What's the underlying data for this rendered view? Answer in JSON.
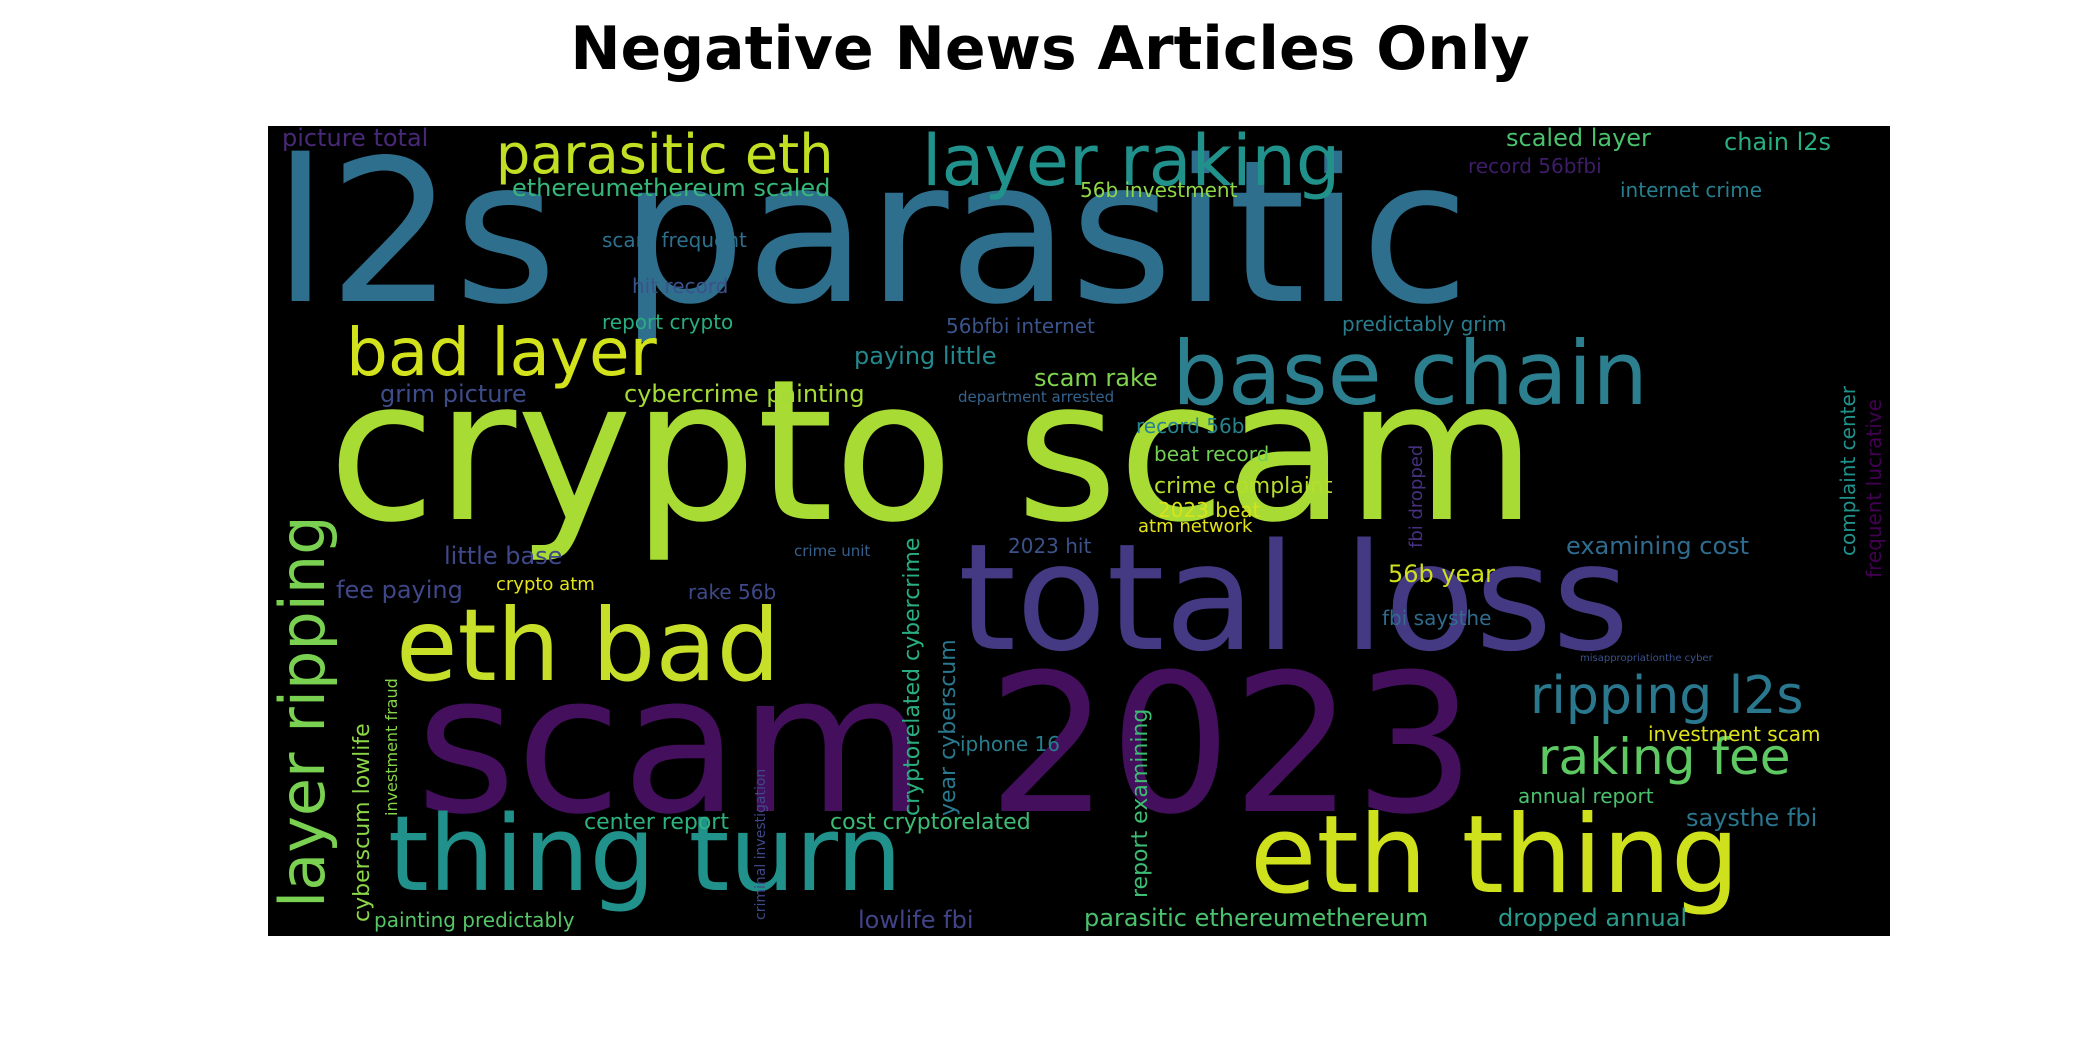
{
  "title": "Negative News Articles Only",
  "wordcloud": {
    "background": "#000000",
    "words": [
      {
        "id": "l2s-parasitic",
        "text": "l2s parasitic",
        "color": "#2f6f8e"
      },
      {
        "id": "crypto-scam",
        "text": "crypto scam",
        "color": "#a8db34"
      },
      {
        "id": "total-loss",
        "text": "total loss",
        "color": "#443983"
      },
      {
        "id": "scam-2023",
        "text": "scam 2023",
        "color": "#440f5c"
      },
      {
        "id": "eth-bad",
        "text": "eth bad",
        "color": "#c8df2a"
      },
      {
        "id": "eth-thing",
        "text": "eth thing",
        "color": "#cfe11c"
      },
      {
        "id": "thing-turn",
        "text": "thing turn",
        "color": "#21918c"
      },
      {
        "id": "base-chain",
        "text": "base chain",
        "color": "#2c7f8e"
      },
      {
        "id": "layer-raking",
        "text": "layer raking",
        "color": "#21918c"
      },
      {
        "id": "parasitic-eth",
        "text": "parasitic eth",
        "color": "#c2df23"
      },
      {
        "id": "bad-layer",
        "text": "bad layer",
        "color": "#d2e21b"
      },
      {
        "id": "layer-ripping",
        "text": "layer ripping",
        "color": "#7ad151"
      },
      {
        "id": "ripping-l2s",
        "text": "ripping l2s",
        "color": "#2a788e"
      },
      {
        "id": "raking-fee",
        "text": "raking fee",
        "color": "#5ec962"
      },
      {
        "id": "scaled-layer",
        "text": "scaled layer",
        "color": "#4ac16d"
      },
      {
        "id": "chain-l2s",
        "text": "chain l2s",
        "color": "#29af7f"
      },
      {
        "id": "picture-total",
        "text": "picture total",
        "color": "#482878"
      },
      {
        "id": "record-56bfbi",
        "text": "record 56bfbi",
        "color": "#3e1d68"
      },
      {
        "id": "ethereumethereum-scaled",
        "text": "ethereumethereum scaled",
        "color": "#35b779"
      },
      {
        "id": "56b-investment",
        "text": "56b investment",
        "color": "#8fd744"
      },
      {
        "id": "internet-crime",
        "text": "internet crime",
        "color": "#277f8e"
      },
      {
        "id": "scam-frequent",
        "text": "scam frequent",
        "color": "#2d708e"
      },
      {
        "id": "hit-record",
        "text": "hit record",
        "color": "#3b528b"
      },
      {
        "id": "report-crypto",
        "text": "report crypto",
        "color": "#28ae80"
      },
      {
        "id": "56bfbi-internet",
        "text": "56bfbi internet",
        "color": "#3a548c"
      },
      {
        "id": "predictably-grim",
        "text": "predictably grim",
        "color": "#2b7c8e"
      },
      {
        "id": "paying-little",
        "text": "paying little",
        "color": "#23898e"
      },
      {
        "id": "scam-rake",
        "text": "scam rake",
        "color": "#7fd34e"
      },
      {
        "id": "grim-picture",
        "text": "grim picture",
        "color": "#3e4c8a"
      },
      {
        "id": "cybercrime-painting",
        "text": "cybercrime painting",
        "color": "#a5db36"
      },
      {
        "id": "department-arrested",
        "text": "department arrested",
        "color": "#33638d"
      },
      {
        "id": "record-56b",
        "text": "record 56b",
        "color": "#25848e"
      },
      {
        "id": "beat-record",
        "text": "beat record",
        "color": "#74d055"
      },
      {
        "id": "crime-complaint",
        "text": "crime complaint",
        "color": "#b5de2b"
      },
      {
        "id": "2023-beat",
        "text": "2023 beat",
        "color": "#d8e219"
      },
      {
        "id": "atm-network",
        "text": "atm network",
        "color": "#e2e418"
      },
      {
        "id": "crime-unit",
        "text": "crime unit",
        "color": "#34608d"
      },
      {
        "id": "little-base",
        "text": "little base",
        "color": "#3f4889"
      },
      {
        "id": "2023-hit",
        "text": "2023 hit",
        "color": "#3b528b"
      },
      {
        "id": "examining-cost",
        "text": "examining cost",
        "color": "#2f6b8e"
      },
      {
        "id": "fee-paying",
        "text": "fee paying",
        "color": "#3f4788"
      },
      {
        "id": "crypto-atm",
        "text": "crypto atm",
        "color": "#e5e419"
      },
      {
        "id": "rake-56b",
        "text": "rake 56b",
        "color": "#3e4989"
      },
      {
        "id": "56b-year",
        "text": "56b year",
        "color": "#d0e11c"
      },
      {
        "id": "fbi-saysthe",
        "text": "fbi saysthe",
        "color": "#2f6c8e"
      },
      {
        "id": "misappropriationthe-cyber",
        "text": "misappropriationthe cyber",
        "color": "#3b528b"
      },
      {
        "id": "investment-scam",
        "text": "investment scam",
        "color": "#dde318"
      },
      {
        "id": "iphone-16",
        "text": "iphone 16",
        "color": "#287d8e"
      },
      {
        "id": "annual-report",
        "text": "annual report",
        "color": "#4cc26c"
      },
      {
        "id": "saysthe-fbi",
        "text": "saysthe fbi",
        "color": "#2a768e"
      },
      {
        "id": "center-report",
        "text": "center report",
        "color": "#2db27d"
      },
      {
        "id": "cost-cryptorelated",
        "text": "cost cryptorelated",
        "color": "#3dbc74"
      },
      {
        "id": "lowlife-fbi",
        "text": "lowlife fbi",
        "color": "#414487"
      },
      {
        "id": "painting-predictably",
        "text": "painting predictably",
        "color": "#56c667"
      },
      {
        "id": "parasitic-ethereumethereum",
        "text": "parasitic ethereumethereum",
        "color": "#4ac16d"
      },
      {
        "id": "dropped-annual",
        "text": "dropped annual",
        "color": "#2a9b8a"
      },
      {
        "id": "cybercrime-lowlife",
        "text": "cyberscum lowlife",
        "color": "#8bd646"
      },
      {
        "id": "investment-fraud",
        "text": "investment fraud",
        "color": "#86d549"
      },
      {
        "id": "criminal-investigation",
        "text": "criminal investigation",
        "color": "#3f4889"
      },
      {
        "id": "cryptorelated-cybercrime",
        "text": "cryptorelated cybercrime",
        "color": "#29af7f"
      },
      {
        "id": "year-cyberscum",
        "text": "year cyberscum",
        "color": "#2a788e"
      },
      {
        "id": "report-examining",
        "text": "report examining",
        "color": "#3dbc74"
      },
      {
        "id": "fbi-dropped",
        "text": "fbi dropped",
        "color": "#46317e"
      },
      {
        "id": "complaint-center",
        "text": "complaint center",
        "color": "#20928c"
      },
      {
        "id": "frequent-lucrative",
        "text": "frequent lucrative",
        "color": "#440154"
      }
    ]
  }
}
